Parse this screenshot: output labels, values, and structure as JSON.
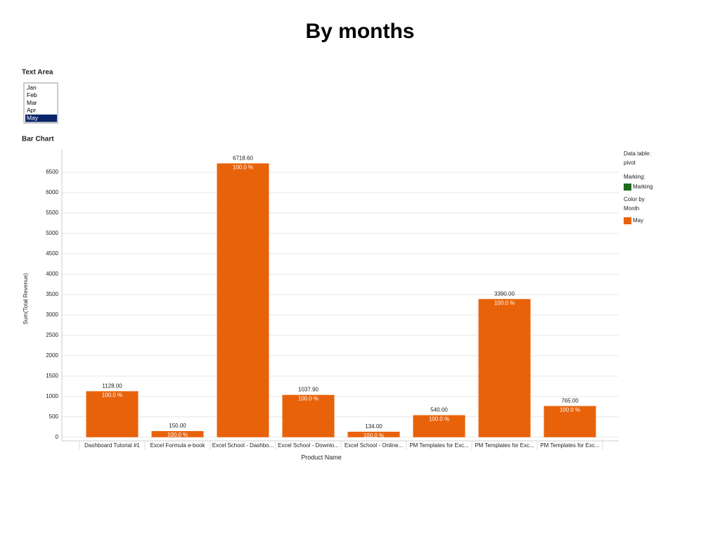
{
  "page_title": "By months",
  "text_area": {
    "label": "Text Area",
    "items": [
      "Jan",
      "Feb",
      "Mar",
      "Apr",
      "May"
    ],
    "selected": "May"
  },
  "bar_chart_label": "Bar Chart",
  "legend": {
    "data_table_label": "Data table:",
    "data_table": "pivot",
    "marking_label": "Marking:",
    "marking": "Marking",
    "marking_color": "#1e6b1e",
    "color_by_label": "Color by",
    "color_by": "Month"
  },
  "chart_data": {
    "type": "bar",
    "categories": [
      "Dashboard Tutorial #1",
      "Excel Formula e-book",
      "Excel School - Dashbo...",
      "Excel School - Downlo...",
      "Excel School - Online...",
      "PM Templates  for Exc...",
      "PM Templates  for Exc...",
      "PM Templates  for Exc..."
    ],
    "series": [
      {
        "name": "May",
        "color": "#e8620a",
        "values": [
          1128,
          150,
          6718.6,
          1037.9,
          134,
          540,
          3390,
          765
        ],
        "value_labels": [
          "1128.00",
          "150.00",
          "6718.60",
          "1037.90",
          "134.00",
          "540.00",
          "3390.00",
          "765.00"
        ],
        "share_labels": [
          "100.0 %",
          "100.0 %",
          "100.0 %",
          "100.0 %",
          "100.0 %",
          "100.0 %",
          "100.0 %",
          "100.0 %"
        ]
      }
    ],
    "ylabel": "Sum(Total Revenue)",
    "xlabel": "Product Name",
    "ylim": [
      -90,
      7070
    ],
    "yticks": [
      0,
      500,
      1000,
      1500,
      2000,
      2500,
      3000,
      3500,
      4000,
      4500,
      5000,
      5500,
      6000,
      6500
    ],
    "grid": true
  }
}
